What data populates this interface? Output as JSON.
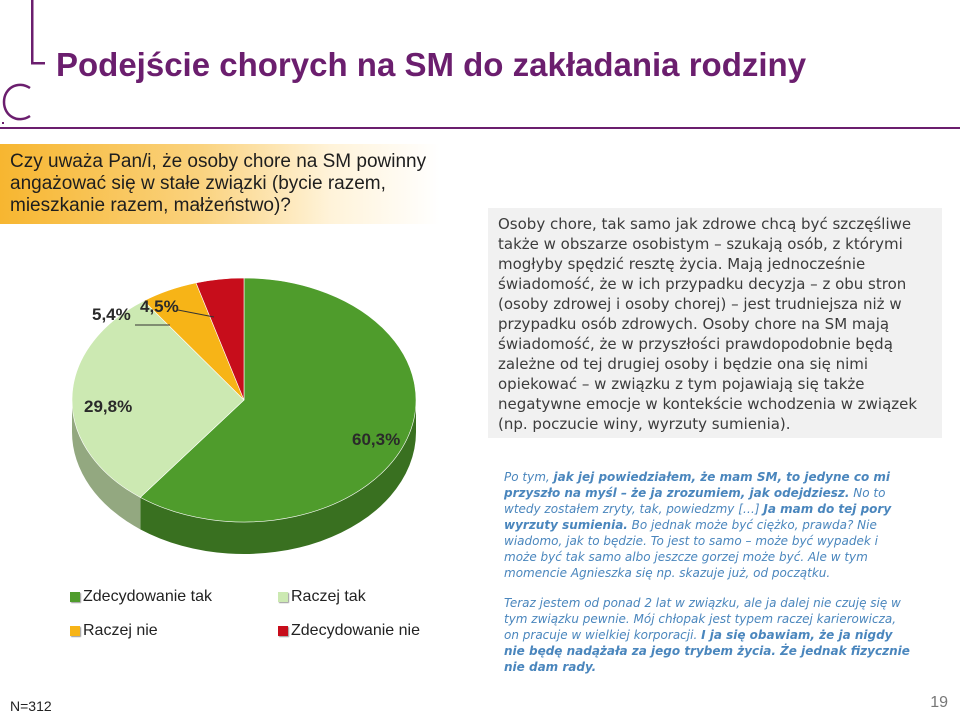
{
  "header": {
    "title": "Podejście chorych na SM do zakładania rodziny"
  },
  "question": "Czy uważa Pan/i, że osoby chore na SM powinny angażować się w stałe związki (bycie razem, mieszkanie razem, małżeństwo)?",
  "summary": "Osoby chore, tak samo jak zdrowe chcą być szczęśliwe także w obszarze osobistym – szukają osób, z którymi mogłyby spędzić resztę życia. Mają jednocześnie świadomość, że w ich przypadku decyzja – z obu stron (osoby zdrowej i osoby chorej) – jest trudniejsza niż w przypadku osób zdrowych. Osoby chore na SM mają świadomość, że w przyszłości prawdopodobnie będą zależne od tej drugiej osoby i będzie ona się nimi opiekować – w związku z tym pojawiają się także negatywne emocje w kontekście wchodzenia w związek (np. poczucie winy, wyrzuty sumienia).",
  "quotes": {
    "q1": [
      {
        "text": "Po tym, ",
        "bold": false
      },
      {
        "text": "jak jej powiedziałem, że mam SM, to jedyne co mi przyszło na myśl – że ja zrozumiem, jak odejdziesz.",
        "bold": true
      },
      {
        "text": " No to wtedy zostałem zryty, tak, powiedzmy […] ",
        "bold": false
      },
      {
        "text": "Ja mam do tej pory wyrzuty sumienia.",
        "bold": true
      },
      {
        "text": " Bo jednak może być ciężko, prawda? Nie wiadomo, jak to będzie. To jest to samo – może być wypadek i może być tak samo albo jeszcze gorzej może być. Ale w tym momencie Agnieszka się np. skazuje już, od początku.",
        "bold": false
      }
    ],
    "q2": [
      {
        "text": "Teraz jestem od ponad 2 lat w związku, ale ja dalej nie czuję się w tym związku pewnie. Mój chłopak jest typem raczej karierowicza, on pracuje w wielkiej korporacji. ",
        "bold": false
      },
      {
        "text": "I ja się obawiam, że ja nigdy nie będę nadążała za jego trybem życia. Że jednak fizycznie nie dam rady.",
        "bold": true
      }
    ]
  },
  "chart_data": {
    "type": "pie",
    "title": "",
    "series": [
      {
        "name": "Zdecydowanie tak",
        "value": 60.3,
        "label": "60,3%",
        "color": "#4f9c2c"
      },
      {
        "name": "Raczej tak",
        "value": 29.8,
        "label": "29,8%",
        "color": "#cce9b2"
      },
      {
        "name": "Raczej nie",
        "value": 5.4,
        "label": "5,4%",
        "color": "#f7b417"
      },
      {
        "name": "Zdecydowanie nie",
        "value": 4.5,
        "label": "4,5%",
        "color": "#c70d1b"
      }
    ],
    "legend_placement": "bottom"
  },
  "footer": {
    "sample": "N=312",
    "page": "19"
  }
}
